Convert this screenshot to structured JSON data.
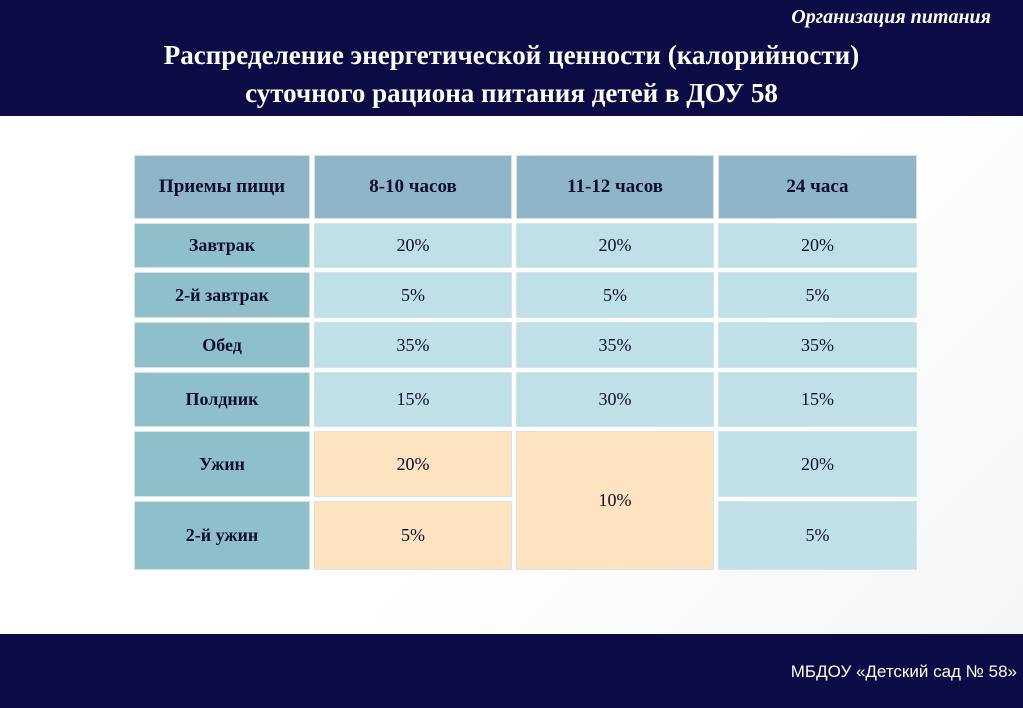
{
  "header": {
    "subtitle": "Организация питания",
    "title_line1": "Распределение энергетической ценности (калорийности)",
    "title_line2": "суточного рациона питания детей в ДОУ 58"
  },
  "table": {
    "columns": [
      "Приемы  пищи",
      "8-10 часов",
      "11-12 часов",
      "24 часа"
    ],
    "rows": [
      {
        "meal": "Завтрак",
        "c1": "20%",
        "c2": "20%",
        "c3": "20%"
      },
      {
        "meal": "2-й завтрак",
        "c1": "5%",
        "c2": "5%",
        "c3": "5%"
      },
      {
        "meal": "Обед",
        "c1": "35%",
        "c2": "35%",
        "c3": "35%"
      },
      {
        "meal": "Полдник",
        "c1": "15%",
        "c2": "30%",
        "c3": "15%"
      },
      {
        "meal": "Ужин",
        "c1": "20%",
        "c3": "20%"
      },
      {
        "meal": "2-й ужин",
        "c1": "5%",
        "c3": "5%"
      }
    ],
    "merged_c2_dinner": "10%",
    "colors": {
      "header": "#8fb6c8",
      "row_header": "#8fbfca",
      "value": "#bfe0e6",
      "highlight": "#fde3bf"
    }
  },
  "footer": {
    "text": "МБДОУ «Детский сад № 58»"
  }
}
